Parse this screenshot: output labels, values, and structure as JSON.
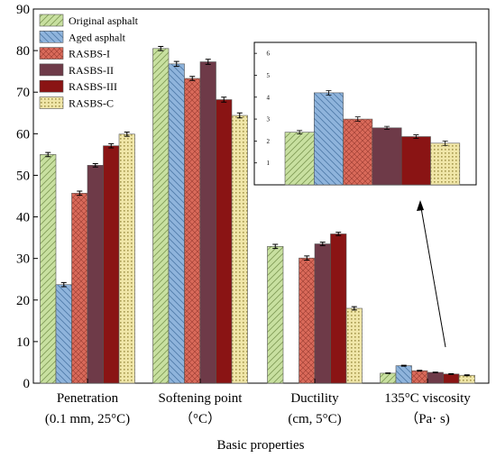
{
  "chart_data": {
    "type": "bar",
    "xlabel": "Basic properties",
    "ylabel": "",
    "ylim": [
      0,
      90
    ],
    "yticks": [
      0,
      10,
      20,
      30,
      40,
      50,
      60,
      70,
      80,
      90
    ],
    "categories": [
      {
        "line1": "Penetration",
        "line2": "(0.1 mm, 25°C)"
      },
      {
        "line1": "Softening point",
        "line2": "（°C）"
      },
      {
        "line1": "Ductility",
        "line2": "(cm, 5°C)"
      },
      {
        "line1": "135°C viscosity",
        "line2": "（Pa· s)"
      }
    ],
    "legend_position": "top-left",
    "series": [
      {
        "name": "Original asphalt",
        "color": "#c8e0a0",
        "pattern": "hatch-forward",
        "values": [
          55.0,
          80.5,
          32.9,
          2.4
        ],
        "errors": [
          0.5,
          0.5,
          0.5,
          0.08
        ]
      },
      {
        "name": "Aged asphalt",
        "color": "#8fb4dc",
        "pattern": "hatch-backward",
        "values": [
          23.7,
          76.8,
          null,
          4.2
        ],
        "errors": [
          0.5,
          0.6,
          null,
          0.1
        ]
      },
      {
        "name": "RASBS-I",
        "color": "#d96a5a",
        "pattern": "crosshatch",
        "values": [
          45.7,
          73.3,
          30.1,
          3.0
        ],
        "errors": [
          0.5,
          0.5,
          0.5,
          0.1
        ]
      },
      {
        "name": "RASBS-II",
        "color": "#6e3a48",
        "pattern": "solid",
        "values": [
          52.4,
          77.3,
          33.5,
          2.6
        ],
        "errors": [
          0.4,
          0.6,
          0.4,
          0.07
        ]
      },
      {
        "name": "RASBS-III",
        "color": "#8a1414",
        "pattern": "solid",
        "values": [
          57.1,
          68.2,
          35.9,
          2.2
        ],
        "errors": [
          0.5,
          0.6,
          0.4,
          0.08
        ]
      },
      {
        "name": "RASBS-C",
        "color": "#f0e6a8",
        "pattern": "dots",
        "values": [
          59.9,
          64.4,
          18.0,
          1.9
        ],
        "errors": [
          0.5,
          0.6,
          0.4,
          0.1
        ]
      }
    ],
    "inset": {
      "source_category": "135°C viscosity",
      "ylim": [
        0,
        6.5
      ],
      "yticks": [
        0,
        1,
        2,
        3,
        4,
        5,
        6
      ]
    }
  }
}
